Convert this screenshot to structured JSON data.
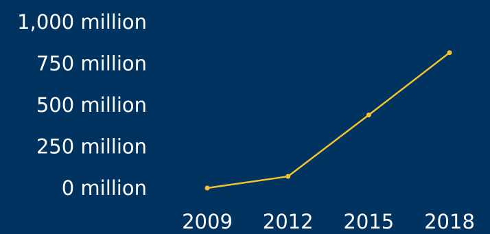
{
  "chart_data": {
    "type": "line",
    "title": "",
    "xlabel": "",
    "ylabel": "",
    "categories": [
      "2009",
      "2012",
      "2015",
      "2018"
    ],
    "series": [
      {
        "values": [
          0,
          70,
          440,
          815
        ]
      }
    ],
    "ylim": [
      0,
      1000
    ],
    "yticks": [
      "0 million",
      "250 million",
      "500 million",
      "750 million",
      "1,000 million"
    ],
    "grid": false,
    "legend": "none",
    "colors": {
      "background": "#003360",
      "line": "#F4C430",
      "text": "#FFFFFF"
    }
  }
}
